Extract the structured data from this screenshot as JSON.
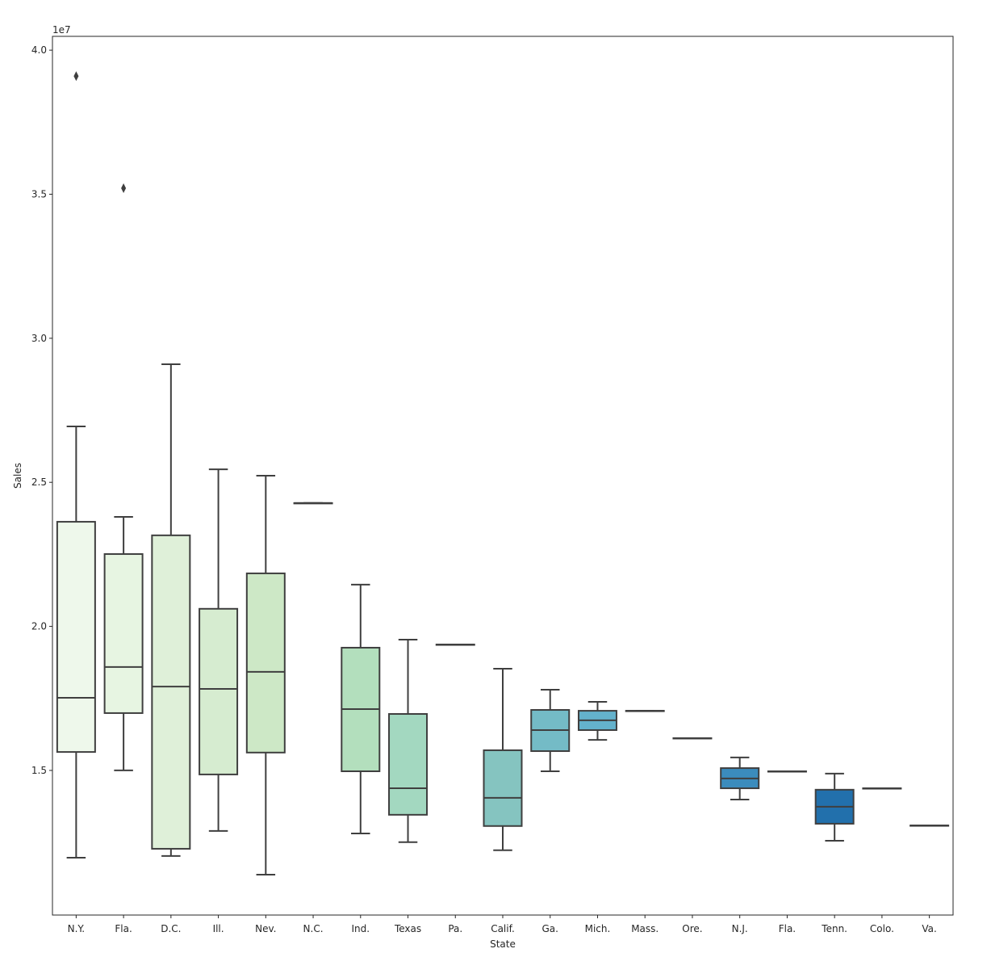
{
  "chart_data": {
    "type": "boxplot",
    "title": "",
    "xlabel": "State",
    "ylabel": "Sales",
    "y_offset_label": "1e7",
    "ylim": [
      0.998,
      4.048
    ],
    "yticks": [
      1.5,
      2.0,
      2.5,
      3.0,
      3.5,
      4.0
    ],
    "ytick_labels": [
      "1.5",
      "2.0",
      "2.5",
      "3.0",
      "3.5",
      "4.0"
    ],
    "grid": false,
    "units_note": "values in units of 1e7",
    "categories": [
      "N.Y.",
      "Fla.",
      "D.C.",
      "Ill.",
      "Nev.",
      "N.C.",
      "Ind.",
      "Texas",
      "Pa.",
      "Calif.",
      "Ga.",
      "Mich.",
      "Mass.",
      "Ore.",
      "N.J.",
      "Fla.",
      "Tenn.",
      "Colo.",
      "Va."
    ],
    "colors": [
      "#eef8eb",
      "#e7f5e2",
      "#dff0d9",
      "#d6ecd0",
      "#cde8c6",
      "#c1e3c0",
      "#b3dfbd",
      "#a3d8c0",
      "#94cfc1",
      "#85c4c0",
      "#74bbc6",
      "#64b2cc",
      "#55a6c8",
      "#4799c3",
      "#3b8cbd",
      "#2f80b6",
      "#2270ac",
      "#1d62a0",
      "#185494"
    ],
    "boxes": [
      {
        "whislo": 1.197,
        "q1": 1.564,
        "med": 1.752,
        "q3": 2.363,
        "whishi": 2.694,
        "fliers": [
          3.91
        ]
      },
      {
        "whislo": 1.5,
        "q1": 1.699,
        "med": 1.859,
        "q3": 2.251,
        "whishi": 2.38,
        "fliers": [
          3.521
        ]
      },
      {
        "whislo": 1.203,
        "q1": 1.228,
        "med": 1.791,
        "q3": 2.316,
        "whishi": 2.91,
        "fliers": []
      },
      {
        "whislo": 1.29,
        "q1": 1.486,
        "med": 1.783,
        "q3": 2.061,
        "whishi": 2.545,
        "fliers": []
      },
      {
        "whislo": 1.138,
        "q1": 1.562,
        "med": 1.842,
        "q3": 2.184,
        "whishi": 2.523,
        "fliers": []
      },
      {
        "whislo": 2.428,
        "q1": 2.428,
        "med": 2.428,
        "q3": 2.428,
        "whishi": 2.428,
        "fliers": []
      },
      {
        "whislo": 1.281,
        "q1": 1.497,
        "med": 1.713,
        "q3": 1.926,
        "whishi": 2.145,
        "fliers": []
      },
      {
        "whislo": 1.251,
        "q1": 1.346,
        "med": 1.438,
        "q3": 1.696,
        "whishi": 1.954,
        "fliers": []
      },
      {
        "whislo": 1.937,
        "q1": 1.937,
        "med": 1.937,
        "q3": 1.937,
        "whishi": 1.937,
        "fliers": []
      },
      {
        "whislo": 1.223,
        "q1": 1.307,
        "med": 1.405,
        "q3": 1.57,
        "whishi": 1.853,
        "fliers": []
      },
      {
        "whislo": 1.497,
        "q1": 1.567,
        "med": 1.64,
        "q3": 1.71,
        "whishi": 1.78,
        "fliers": []
      },
      {
        "whislo": 1.606,
        "q1": 1.64,
        "med": 1.674,
        "q3": 1.707,
        "whishi": 1.738,
        "fliers": []
      },
      {
        "whislo": 1.707,
        "q1": 1.707,
        "med": 1.707,
        "q3": 1.707,
        "whishi": 1.707,
        "fliers": []
      },
      {
        "whislo": 1.612,
        "q1": 1.612,
        "med": 1.612,
        "q3": 1.612,
        "whishi": 1.612,
        "fliers": []
      },
      {
        "whislo": 1.399,
        "q1": 1.438,
        "med": 1.472,
        "q3": 1.508,
        "whishi": 1.545,
        "fliers": []
      },
      {
        "whislo": 1.497,
        "q1": 1.497,
        "med": 1.497,
        "q3": 1.497,
        "whishi": 1.497,
        "fliers": []
      },
      {
        "whislo": 1.256,
        "q1": 1.315,
        "med": 1.374,
        "q3": 1.433,
        "whishi": 1.489,
        "fliers": []
      },
      {
        "whislo": 1.438,
        "q1": 1.438,
        "med": 1.438,
        "q3": 1.438,
        "whishi": 1.438,
        "fliers": []
      },
      {
        "whislo": 1.309,
        "q1": 1.309,
        "med": 1.309,
        "q3": 1.309,
        "whishi": 1.309,
        "fliers": []
      }
    ],
    "line_color": "#3f3f3f"
  }
}
